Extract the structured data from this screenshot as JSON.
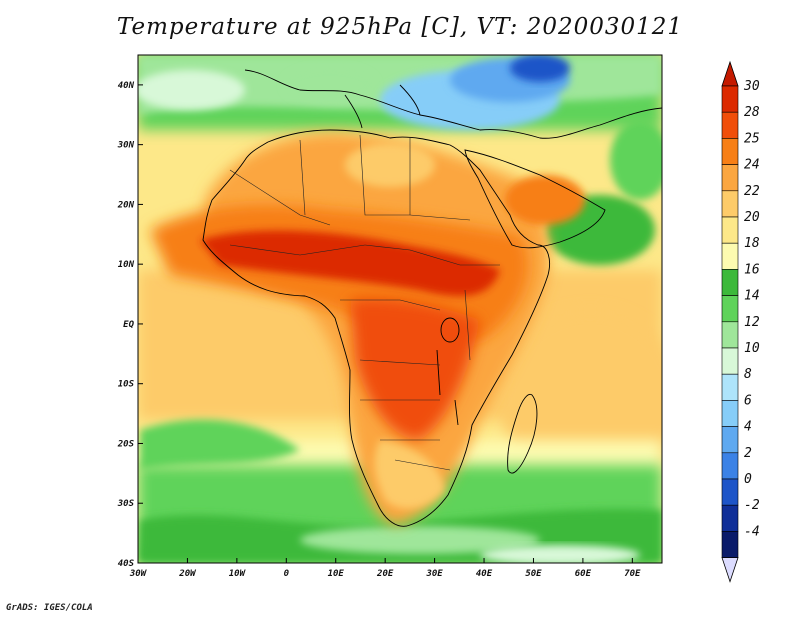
{
  "title": "Temperature at 925hPa [C], VT: 2020030121",
  "credit": "GrADS: IGES/COLA",
  "map": {
    "lon_range": [
      -30,
      76
    ],
    "lat_range": [
      -40,
      45
    ],
    "lon_ticks": [
      {
        "lon": -30,
        "label": "30W"
      },
      {
        "lon": -20,
        "label": "20W"
      },
      {
        "lon": -10,
        "label": "10W"
      },
      {
        "lon": 0,
        "label": "0"
      },
      {
        "lon": 10,
        "label": "10E"
      },
      {
        "lon": 20,
        "label": "20E"
      },
      {
        "lon": 30,
        "label": "30E"
      },
      {
        "lon": 40,
        "label": "40E"
      },
      {
        "lon": 50,
        "label": "50E"
      },
      {
        "lon": 60,
        "label": "60E"
      },
      {
        "lon": 70,
        "label": "70E"
      }
    ],
    "lat_ticks": [
      {
        "lat": 40,
        "label": "40N"
      },
      {
        "lat": 30,
        "label": "30N"
      },
      {
        "lat": 20,
        "label": "20N"
      },
      {
        "lat": 10,
        "label": "10N"
      },
      {
        "lat": 0,
        "label": "EQ"
      },
      {
        "lat": -10,
        "label": "10S"
      },
      {
        "lat": -20,
        "label": "20S"
      },
      {
        "lat": -30,
        "label": "30S"
      },
      {
        "lat": -40,
        "label": "40S"
      }
    ]
  },
  "colorbar": {
    "labels": [
      "30",
      "28",
      "25",
      "24",
      "22",
      "20",
      "18",
      "16",
      "14",
      "12",
      "10",
      "8",
      "6",
      "4",
      "2",
      "0",
      "-2",
      "-4"
    ],
    "colors": [
      "#dc2a00",
      "#f04e0a",
      "#f77f16",
      "#fba640",
      "#fdcb69",
      "#fde889",
      "#fdfbb0",
      "#3cb93a",
      "#5fd35a",
      "#9fe69a",
      "#d8f8d8",
      "#aee4fb",
      "#86cdf8",
      "#5fa9f0",
      "#3b82e6",
      "#1e55c8",
      "#102f98",
      "#0a1b6a"
    ],
    "top_triangle_color": "#c41a00",
    "bottom_triangle_color": "#dcdcff"
  }
}
